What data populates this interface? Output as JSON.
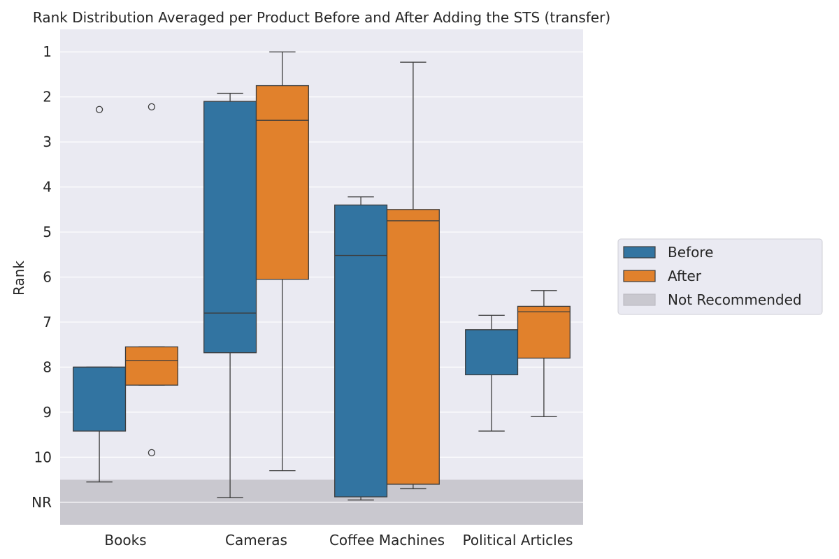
{
  "chart_data": {
    "type": "box",
    "title": "Rank Distribution Averaged per Product Before and After Adding the STS (transfer)",
    "xlabel": "",
    "ylabel": "Rank",
    "categories": [
      "Books",
      "Cameras",
      "Coffee Machines",
      "Political Articles"
    ],
    "y_tick_labels": [
      "1",
      "2",
      "3",
      "4",
      "5",
      "6",
      "7",
      "8",
      "9",
      "10",
      "NR"
    ],
    "y_ticks": [
      1,
      2,
      3,
      4,
      5,
      6,
      7,
      8,
      9,
      10,
      11
    ],
    "ylim": [
      11.5,
      0.5
    ],
    "y_inverted": true,
    "grid": true,
    "legend_position": "outside-right",
    "not_recommended_band": [
      10.5,
      11.5
    ],
    "series": [
      {
        "name": "Before",
        "color": "#3274a1",
        "boxes": [
          {
            "whisker_low": 8.0,
            "q1": 8.0,
            "median": 8.0,
            "q3": 9.42,
            "whisker_high": 10.55,
            "outliers": [
              2.28
            ]
          },
          {
            "whisker_low": 1.92,
            "q1": 2.1,
            "median": 6.8,
            "q3": 7.68,
            "whisker_high": 10.9,
            "outliers": []
          },
          {
            "whisker_low": 4.22,
            "q1": 4.4,
            "median": 5.52,
            "q3": 10.88,
            "whisker_high": 10.95,
            "outliers": []
          },
          {
            "whisker_low": 6.85,
            "q1": 7.17,
            "median": 7.17,
            "q3": 8.17,
            "whisker_high": 9.42,
            "outliers": []
          }
        ]
      },
      {
        "name": "After",
        "color": "#e1812c",
        "boxes": [
          {
            "whisker_low": 7.55,
            "q1": 7.55,
            "median": 7.85,
            "q3": 8.4,
            "whisker_high": 8.4,
            "outliers": [
              2.22,
              9.9
            ]
          },
          {
            "whisker_low": 1.0,
            "q1": 1.75,
            "median": 2.52,
            "q3": 6.05,
            "whisker_high": 10.3,
            "outliers": []
          },
          {
            "whisker_low": 1.23,
            "q1": 4.5,
            "median": 4.75,
            "q3": 10.6,
            "whisker_high": 10.7,
            "outliers": []
          },
          {
            "whisker_low": 6.3,
            "q1": 6.65,
            "median": 6.77,
            "q3": 7.8,
            "whisker_high": 9.1,
            "outliers": []
          }
        ]
      }
    ],
    "legend": [
      {
        "label": "Before",
        "color": "#3274a1"
      },
      {
        "label": "After",
        "color": "#e1812c"
      },
      {
        "label": "Not Recommended",
        "color": "#c9c8cf"
      }
    ]
  },
  "colors": {
    "plot_background": "#eaeaf2",
    "grid": "#ffffff",
    "box_edge": "#3d3d3d",
    "nr_band": "#c9c8cf"
  }
}
